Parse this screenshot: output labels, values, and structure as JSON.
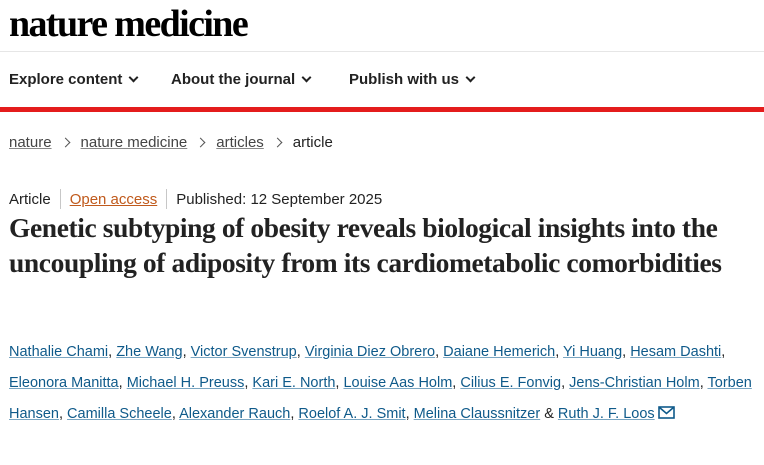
{
  "brand": {
    "logo_text": "nature medicine"
  },
  "nav": {
    "items": [
      {
        "label": "Explore content"
      },
      {
        "label": "About the journal"
      },
      {
        "label": "Publish with us"
      }
    ]
  },
  "breadcrumb": {
    "items": [
      "nature",
      "nature medicine",
      "articles"
    ],
    "current": "article"
  },
  "article": {
    "type": "Article",
    "access": "Open access",
    "published": "Published: 12 September 2025",
    "title": "Genetic subtyping of obesity reveals biological insights into the uncoupling of adiposity from its cardiometabolic comorbidities",
    "authors": [
      "Nathalie Chami",
      "Zhe Wang",
      "Victor Svenstrup",
      "Virginia Diez Obrero",
      "Daiane Hemerich",
      "Yi Huang",
      "Hesam Dashti",
      "Eleonora Manitta",
      "Michael H. Preuss",
      "Kari E. North",
      "Louise Aas Holm",
      "Cilius E. Fonvig",
      "Jens-Christian Holm",
      "Torben Hansen",
      "Camilla Scheele",
      "Alexander Rauch",
      "Roelof A. J. Smit",
      "Melina Claussnitzer"
    ],
    "last_author": "Ruth J. F. Loos",
    "separator": ",",
    "ampersand": "&",
    "corresponding_icon": "mail-icon"
  },
  "colors": {
    "accent_rule": "#e41c1c",
    "author_link": "#0f5a8a",
    "open_access": "#c05a1c"
  }
}
